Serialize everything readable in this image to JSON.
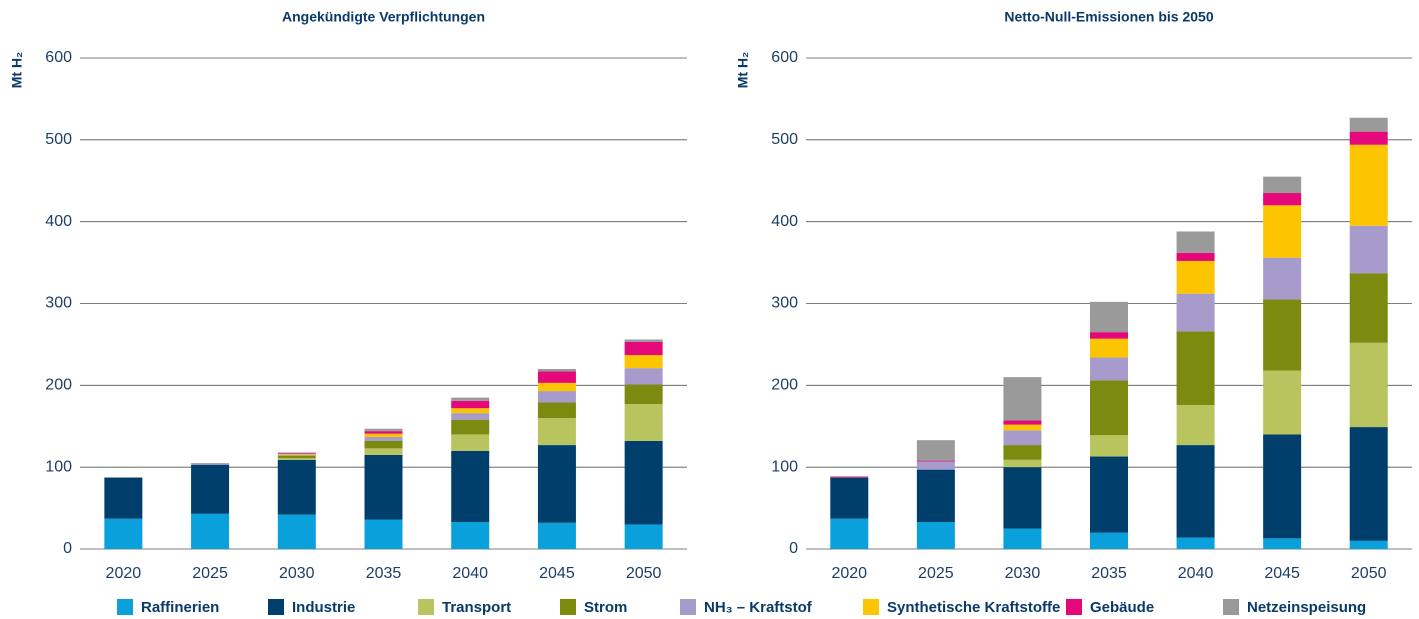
{
  "chart_data": [
    {
      "type": "stacked_bar",
      "title": "Angekündigte Verpflichtungen",
      "y_label": "Mt H₂",
      "categories": [
        "2020",
        "2025",
        "2030",
        "2035",
        "2040",
        "2045",
        "2050"
      ],
      "ylim": [
        0,
        600
      ],
      "yticks": [
        0,
        100,
        200,
        300,
        400,
        500,
        600
      ],
      "grid": true,
      "series": [
        {
          "name": "Raffinerien",
          "color": "#0aa0dc",
          "values": [
            37,
            43,
            42,
            36,
            33,
            32,
            30
          ]
        },
        {
          "name": "Industrie",
          "color": "#003f6b",
          "values": [
            50,
            60,
            67,
            79,
            87,
            95,
            102
          ]
        },
        {
          "name": "Transport",
          "color": "#b8c45e",
          "values": [
            0,
            0,
            2,
            8,
            20,
            33,
            45
          ]
        },
        {
          "name": "Strom",
          "color": "#7a8b10",
          "values": [
            0,
            0,
            3,
            9,
            18,
            19,
            24
          ]
        },
        {
          "name": "NH₃ – Kraftstof",
          "color": "#a69bcb",
          "values": [
            0,
            1,
            1,
            5,
            8,
            14,
            20
          ]
        },
        {
          "name": "Synthetische Kraftstoffe",
          "color": "#fcc500",
          "values": [
            0,
            0,
            1,
            4,
            6,
            10,
            16
          ]
        },
        {
          "name": "Gebäude",
          "color": "#e4087a",
          "values": [
            0,
            0,
            1,
            3,
            9,
            14,
            16
          ]
        },
        {
          "name": "Netzeinspeisung",
          "color": "#9a9a9a",
          "values": [
            1,
            1,
            1,
            3,
            4,
            3,
            3
          ]
        }
      ]
    },
    {
      "type": "stacked_bar",
      "title": "Netto-Null-Emissionen bis 2050",
      "y_label": "Mt H₂",
      "categories": [
        "2020",
        "2025",
        "2030",
        "2035",
        "2040",
        "2045",
        "2050"
      ],
      "ylim": [
        0,
        600
      ],
      "yticks": [
        0,
        100,
        200,
        300,
        400,
        500,
        600
      ],
      "grid": true,
      "series": [
        {
          "name": "Raffinerien",
          "color": "#0aa0dc",
          "values": [
            37,
            33,
            25,
            20,
            14,
            13,
            10
          ]
        },
        {
          "name": "Industrie",
          "color": "#003f6b",
          "values": [
            50,
            64,
            75,
            93,
            113,
            127,
            139
          ]
        },
        {
          "name": "Transport",
          "color": "#b8c45e",
          "values": [
            0,
            0,
            9,
            26,
            49,
            78,
            103
          ]
        },
        {
          "name": "Strom",
          "color": "#7a8b10",
          "values": [
            0,
            0,
            18,
            67,
            90,
            87,
            85
          ]
        },
        {
          "name": "NH₃ – Kraftstof",
          "color": "#a69bcb",
          "values": [
            0,
            10,
            18,
            28,
            46,
            51,
            58
          ]
        },
        {
          "name": "Synthetische Kraftstoffe",
          "color": "#fcc500",
          "values": [
            0,
            0,
            7,
            23,
            40,
            64,
            99
          ]
        },
        {
          "name": "Gebäude",
          "color": "#e4087a",
          "values": [
            1,
            1,
            5,
            8,
            10,
            15,
            16
          ]
        },
        {
          "name": "Netzeinspeisung",
          "color": "#9a9a9a",
          "values": [
            1,
            25,
            53,
            37,
            26,
            20,
            17
          ]
        }
      ]
    }
  ]
}
